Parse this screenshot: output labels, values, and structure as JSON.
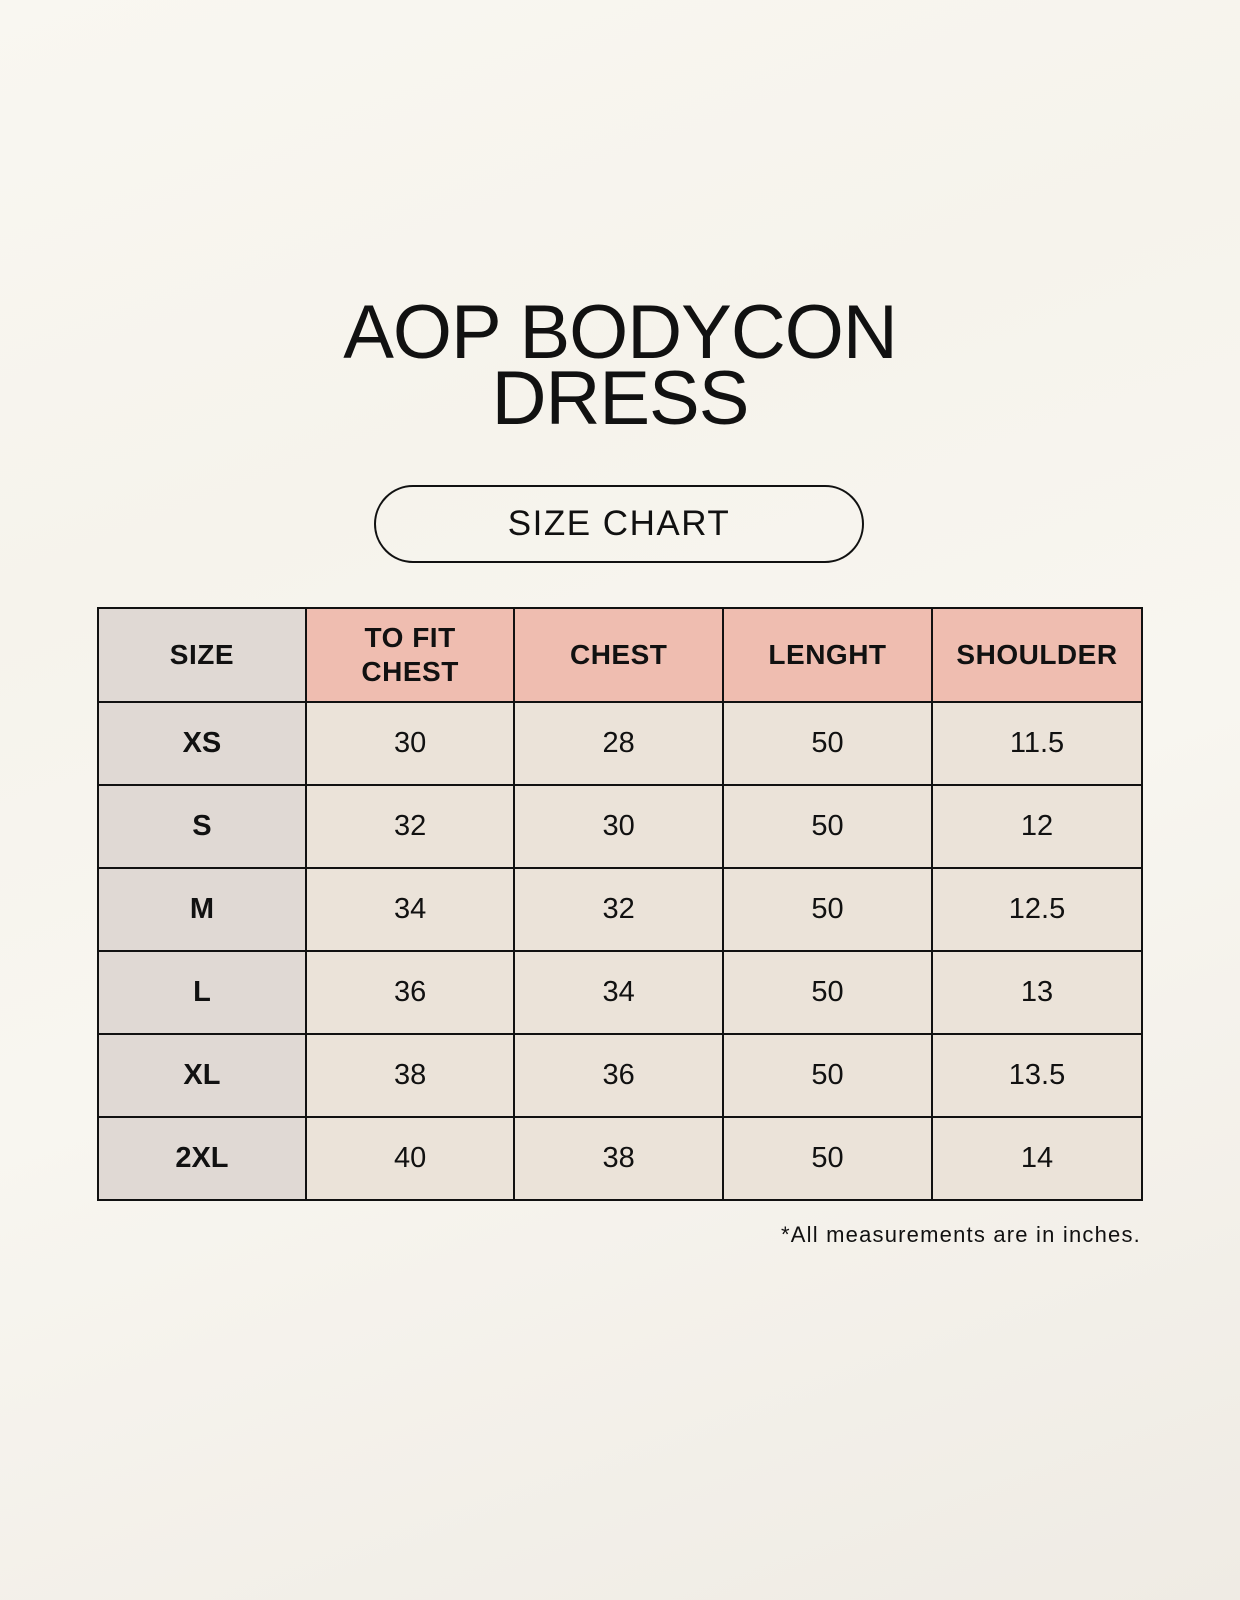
{
  "title_lines": [
    "AOP BODYCON",
    "DRESS"
  ],
  "badge": "SIZE CHART",
  "table": {
    "headers": [
      "SIZE",
      "TO FIT\nCHEST",
      "CHEST",
      "LENGHT",
      "SHOULDER"
    ],
    "rows": [
      [
        "XS",
        "30",
        "28",
        "50",
        "11.5"
      ],
      [
        "S",
        "32",
        "30",
        "50",
        "12"
      ],
      [
        "M",
        "34",
        "32",
        "50",
        "12.5"
      ],
      [
        "L",
        "36",
        "34",
        "50",
        "13"
      ],
      [
        "XL",
        "38",
        "36",
        "50",
        "13.5"
      ],
      [
        "2XL",
        "40",
        "38",
        "50",
        "14"
      ]
    ]
  },
  "footnote": "*All measurements are in inches.",
  "colors": {
    "header": "#efbdb0",
    "size_column": "#e0d9d4",
    "cell": "#ebe3d9",
    "background": "#f8f6f0"
  }
}
